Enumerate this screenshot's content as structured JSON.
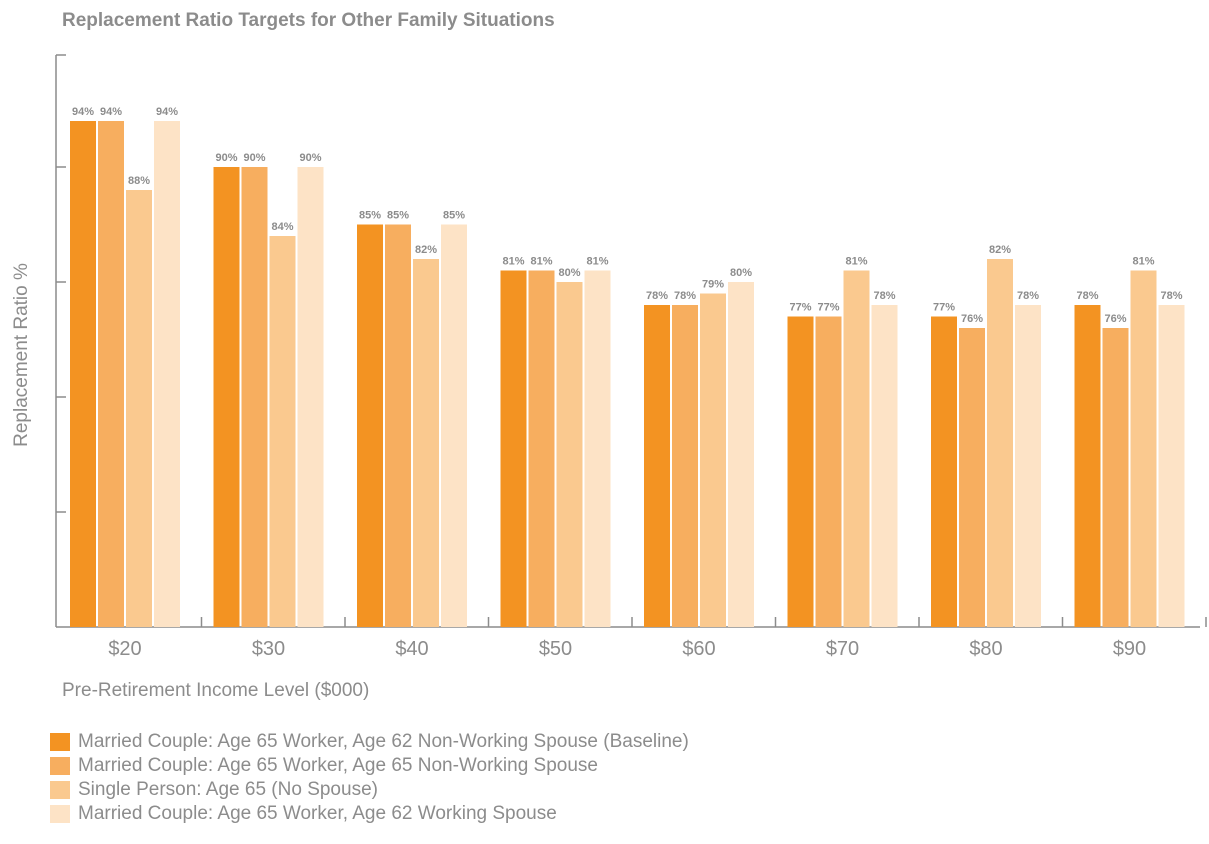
{
  "chart_data": {
    "type": "bar",
    "title": "Replacement Ratio Targets for Other Family Situations",
    "xlabel": "Pre-Retirement Income Level ($000)",
    "ylabel": "Replacement Ratio %",
    "categories": [
      "$20",
      "$30",
      "$40",
      "$50",
      "$60",
      "$70",
      "$80",
      "$90"
    ],
    "ylim": [
      50,
      100
    ],
    "grid": false,
    "legend_position": "bottom",
    "series": [
      {
        "name": "Married Couple: Age 65 Worker, Age 62 Non-Working Spouse (Baseline)",
        "color": "#f39322",
        "values": [
          94,
          90,
          85,
          81,
          78,
          77,
          77,
          78
        ],
        "labels": [
          "94%",
          "90%",
          "85%",
          "81%",
          "78%",
          "77%",
          "77%",
          "78%"
        ]
      },
      {
        "name": "Married Couple: Age 65 Worker, Age 65 Non-Working Spouse",
        "color": "#f7ae5f",
        "values": [
          94,
          90,
          85,
          81,
          78,
          77,
          76,
          76
        ],
        "labels": [
          "94%",
          "90%",
          "85%",
          "81%",
          "78%",
          "77%",
          "76%",
          "76%"
        ]
      },
      {
        "name": "Single Person: Age 65 (No Spouse)",
        "color": "#fac98f",
        "values": [
          88,
          84,
          82,
          80,
          79,
          81,
          82,
          81
        ],
        "labels": [
          "88%",
          "84%",
          "82%",
          "80%",
          "79%",
          "81%",
          "82%",
          "81%"
        ]
      },
      {
        "name": "Married Couple: Age 65 Worker, Age 62 Working Spouse",
        "color": "#fde3c6",
        "values": [
          94,
          90,
          85,
          81,
          80,
          78,
          78,
          78
        ],
        "labels": [
          "94%",
          "90%",
          "85%",
          "81%",
          "80%",
          "78%",
          "78%",
          "78%"
        ]
      }
    ],
    "axis_color": "#8c8c8c"
  }
}
